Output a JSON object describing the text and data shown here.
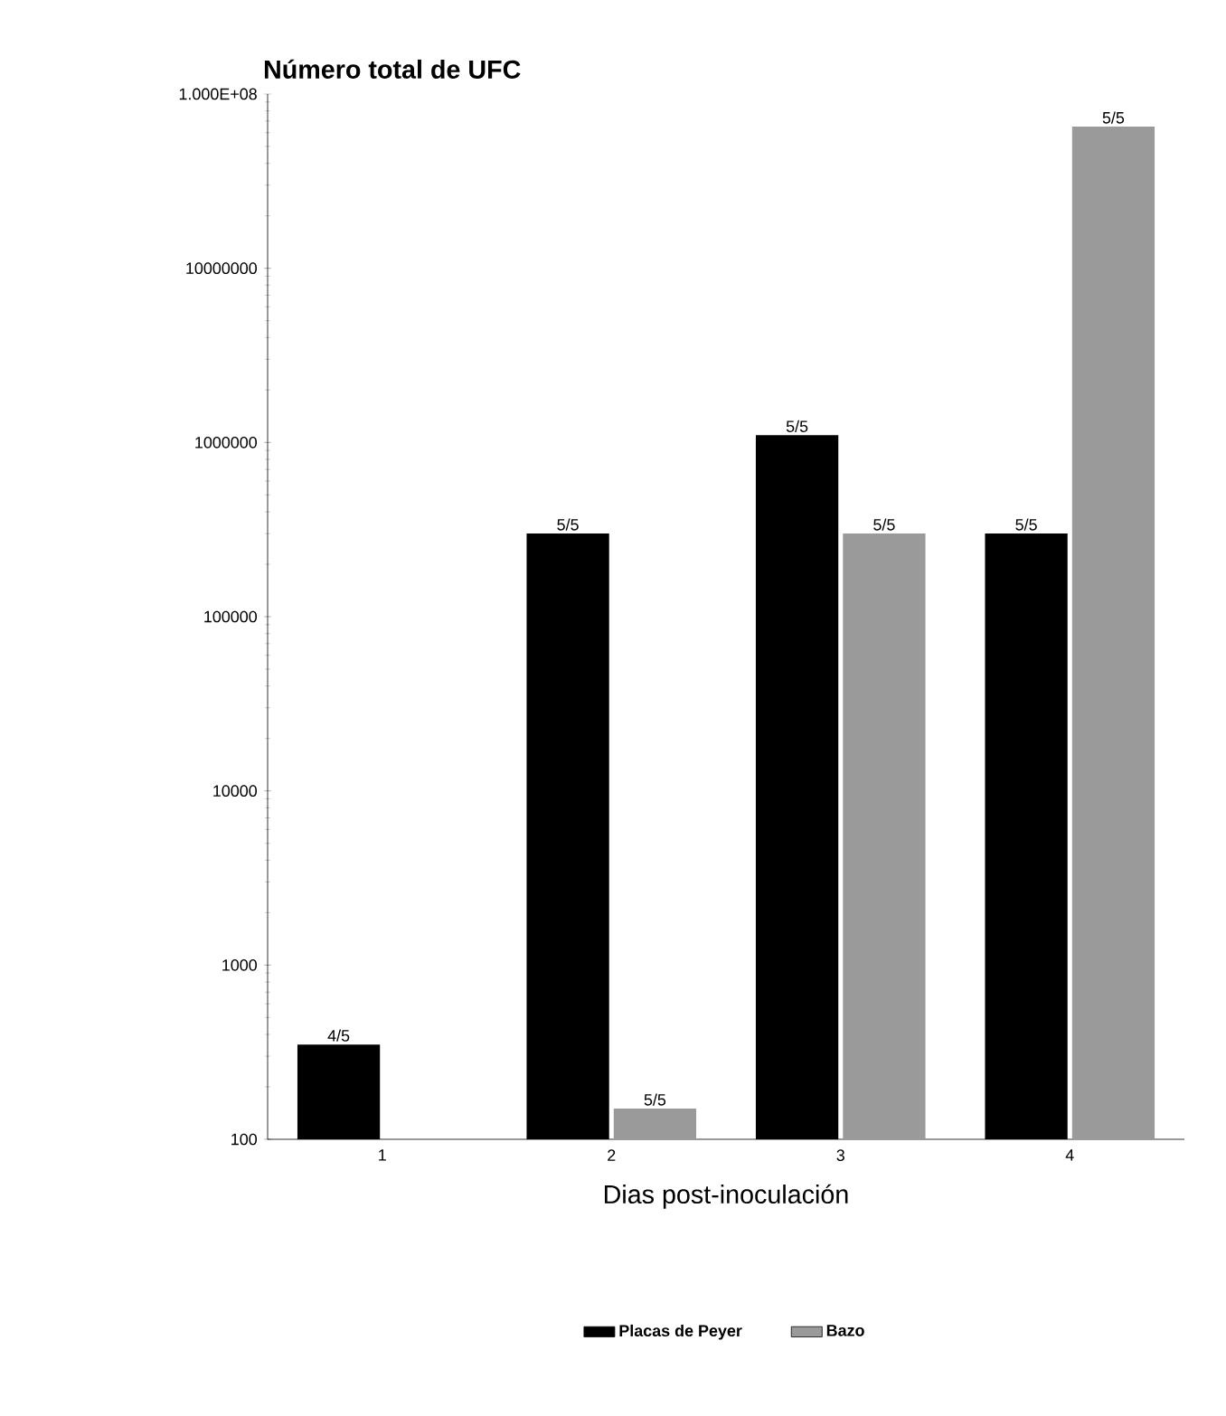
{
  "chart_data": {
    "type": "bar",
    "title": "Número total de UFC",
    "xlabel": "Dias post-inoculación",
    "categories": [
      "1",
      "2",
      "3",
      "4"
    ],
    "series": [
      {
        "name": "Placas de Peyer",
        "color": "#000000",
        "values": [
          350,
          300000,
          1100000,
          300000
        ]
      },
      {
        "name": "Bazo",
        "color": "#9a9a9a",
        "values": [
          null,
          150,
          300000,
          65000000
        ]
      }
    ],
    "annotations": [
      {
        "text": "4/5",
        "x": "1",
        "y": 350
      },
      {
        "text": "5/5",
        "x": "2",
        "y": 300000
      },
      {
        "text": "5/5",
        "x": "2",
        "y": 150
      },
      {
        "text": "5/5",
        "x": "3",
        "y": 1100000
      },
      {
        "text": "5/5",
        "x": "3",
        "y": 300000
      },
      {
        "text": "5/5",
        "x": "4",
        "y": 300000
      },
      {
        "text": "5/5",
        "x": "4",
        "y": 65000000
      }
    ],
    "log": true,
    "ylim": [
      100,
      100000000
    ],
    "yticks": [
      100,
      1000,
      10000,
      100000,
      1000000,
      10000000,
      {
        "value": 100000000,
        "label": "1.000E+08"
      }
    ],
    "grid": false,
    "legend": "bottom"
  }
}
